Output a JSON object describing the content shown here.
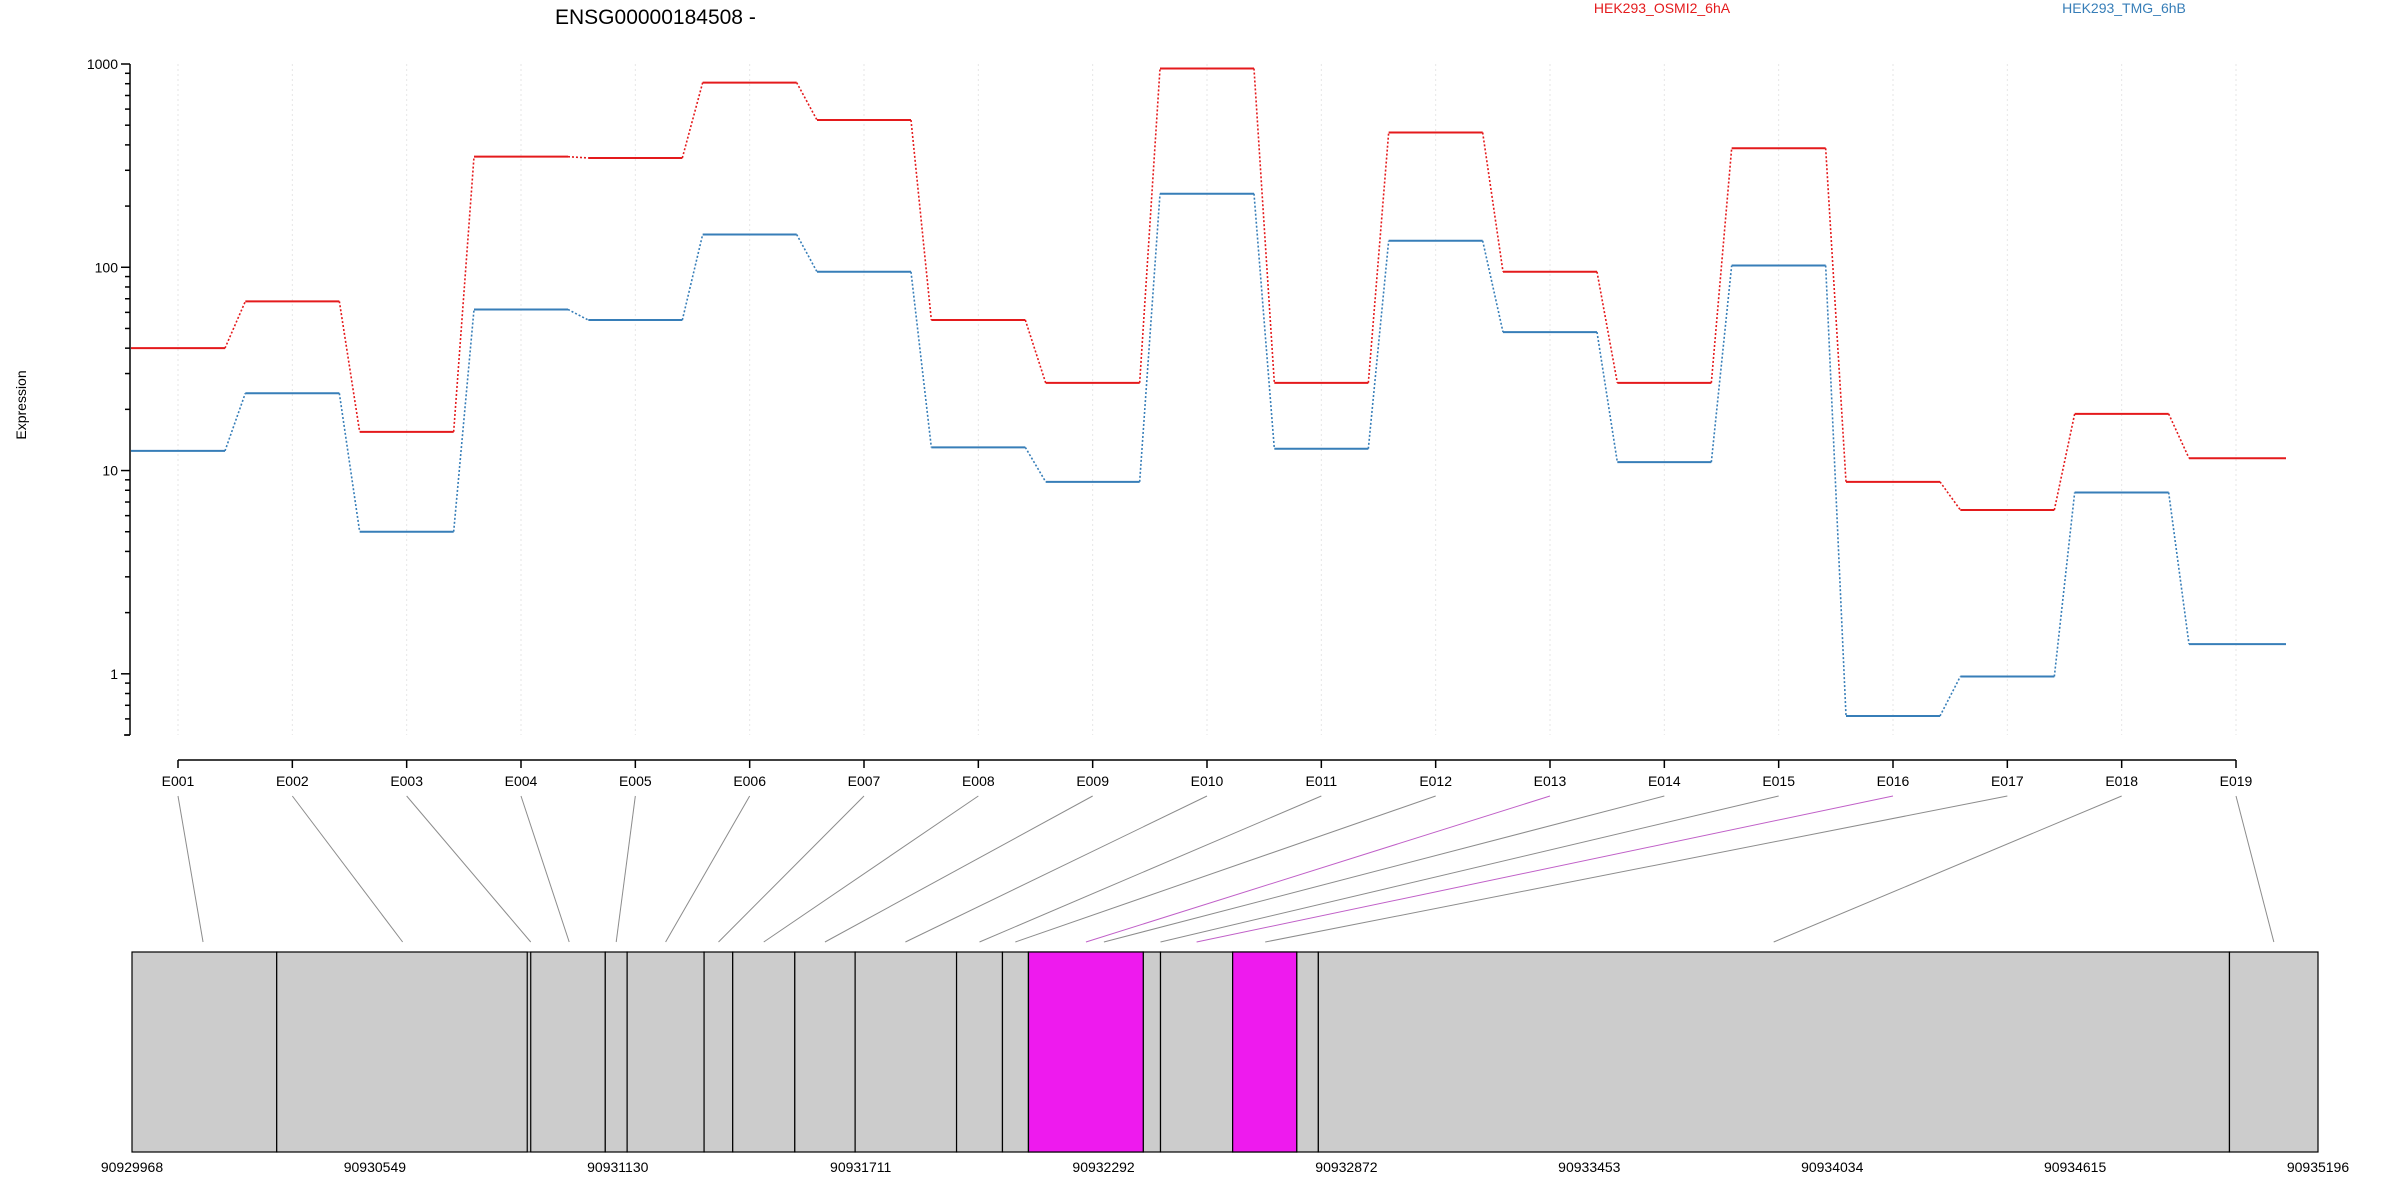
{
  "chart_data": {
    "type": "line",
    "title": "ENSG00000184508 -",
    "ylabel": "Expression",
    "yscale": "log",
    "ylim": [
      0.5,
      1000
    ],
    "yticks": [
      1,
      10,
      100,
      1000
    ],
    "grid": true,
    "legend_position": "top-right",
    "categories": [
      "E001",
      "E002",
      "E003",
      "E004",
      "E005",
      "E006",
      "E007",
      "E008",
      "E009",
      "E010",
      "E011",
      "E012",
      "E013",
      "E014",
      "E015",
      "E016",
      "E017",
      "E018",
      "E019"
    ],
    "series": [
      {
        "name": "HEK293_OSMI2_6hA",
        "color": "#e41a1c",
        "values": [
          40,
          68,
          15.5,
          350,
          345,
          810,
          530,
          55,
          27,
          950,
          27,
          460,
          95,
          27,
          385,
          8.8,
          6.4,
          19,
          11.5
        ]
      },
      {
        "name": "HEK293_TMG_6hB",
        "color": "#377eb8",
        "values": [
          12.5,
          24,
          5,
          62,
          55,
          145,
          95,
          13,
          8.8,
          230,
          12.8,
          135,
          48,
          11,
          102,
          0.62,
          0.97,
          7.8,
          1.4
        ]
      }
    ],
    "gene_track": {
      "coordinate_labels": [
        "90929968",
        "90930549",
        "90931130",
        "90931711",
        "90932292",
        "90932872",
        "90933453",
        "90934034",
        "90934615",
        "90935196"
      ],
      "start": 90929968,
      "end": 90935196,
      "exon_color": "#cccccc",
      "highlight_color": "#ee1aee",
      "highlighted_exons": [
        "E013",
        "E016"
      ]
    }
  }
}
